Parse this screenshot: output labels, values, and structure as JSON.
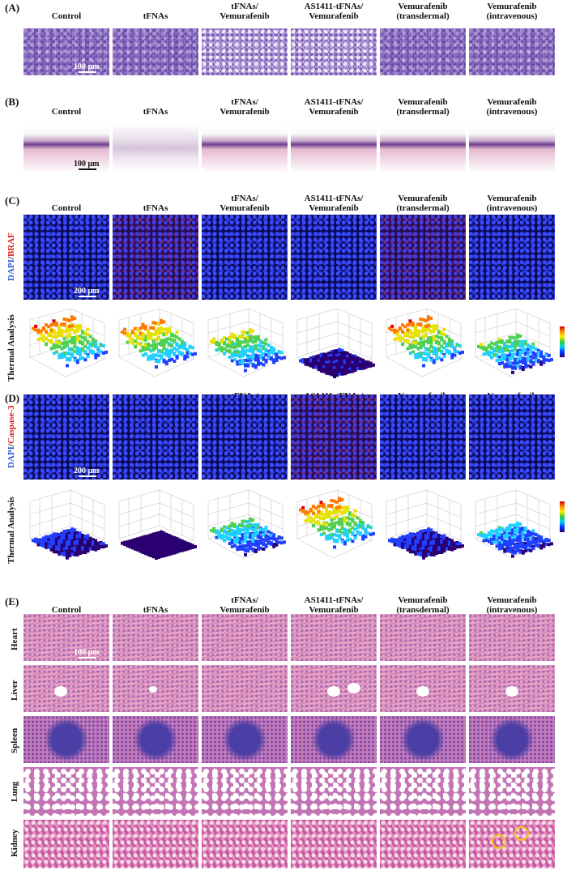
{
  "panels": {
    "A": "(A)",
    "B": "(B)",
    "C": "(C)",
    "D": "(D)",
    "E": "(E)"
  },
  "columns": [
    "Control",
    "tFNAs",
    "tFNAs/\nVemurafenib",
    "AS1411-tFNAs/\nVemurafenib",
    "Vemurafenib\n(transdermal)",
    "Vemurafenib\n(intravenous)"
  ],
  "scale_100": "100 μm",
  "scale_200": "200 μm",
  "labels": {
    "c_row": [
      "DAPI",
      "/",
      "BRAF"
    ],
    "d_row": [
      "DAPI",
      "/",
      "Caspase-3"
    ],
    "thermal": "Thermal Analysis"
  },
  "organs": [
    "Heart",
    "Liver",
    "Spleen",
    "Lung",
    "Kidney"
  ],
  "thermal_levels": {
    "braf": [
      0.9,
      0.85,
      0.7,
      0.15,
      0.9,
      0.6
    ],
    "caspase": [
      0.25,
      0.05,
      0.55,
      0.9,
      0.25,
      0.45
    ]
  },
  "colors": {
    "label_blue": "#2f5bd8",
    "label_red": "#d42020"
  }
}
